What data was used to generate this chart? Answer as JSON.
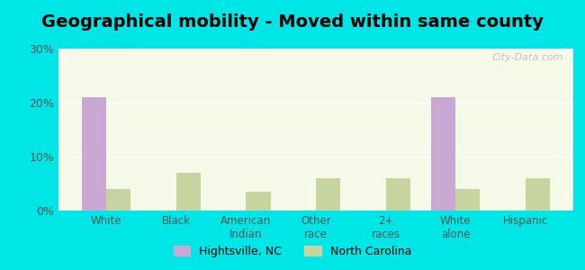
{
  "title": "Geographical mobility - Moved within same county",
  "categories": [
    "White",
    "Black",
    "American\nIndian",
    "Other\nrace",
    "2+\nraces",
    "White\nalone",
    "Hispanic"
  ],
  "hightsville_values": [
    21.0,
    0,
    0,
    0,
    0,
    21.0,
    0
  ],
  "nc_values": [
    4.0,
    7.0,
    3.5,
    6.0,
    6.0,
    4.0,
    6.0
  ],
  "hightsville_color": "#c9a8d4",
  "nc_color": "#c8d4a0",
  "ylim": [
    0,
    30
  ],
  "yticks": [
    0,
    10,
    20,
    30
  ],
  "ytick_labels": [
    "0%",
    "10%",
    "20%",
    "30%"
  ],
  "background_color": "#f5fae8",
  "outer_background": "#00e5e5",
  "legend_label_1": "Hightsville, NC",
  "legend_label_2": "North Carolina",
  "title_fontsize": 14,
  "bar_width": 0.35,
  "watermark": "City-Data.com"
}
